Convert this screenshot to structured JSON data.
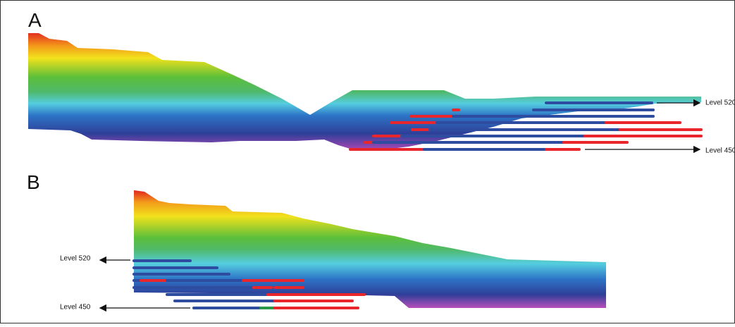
{
  "panels": [
    {
      "label": "A",
      "annotations": [
        "Level 520",
        "Level 450"
      ]
    },
    {
      "label": "B",
      "annotations": [
        "Level 520",
        "Level 450"
      ]
    }
  ]
}
